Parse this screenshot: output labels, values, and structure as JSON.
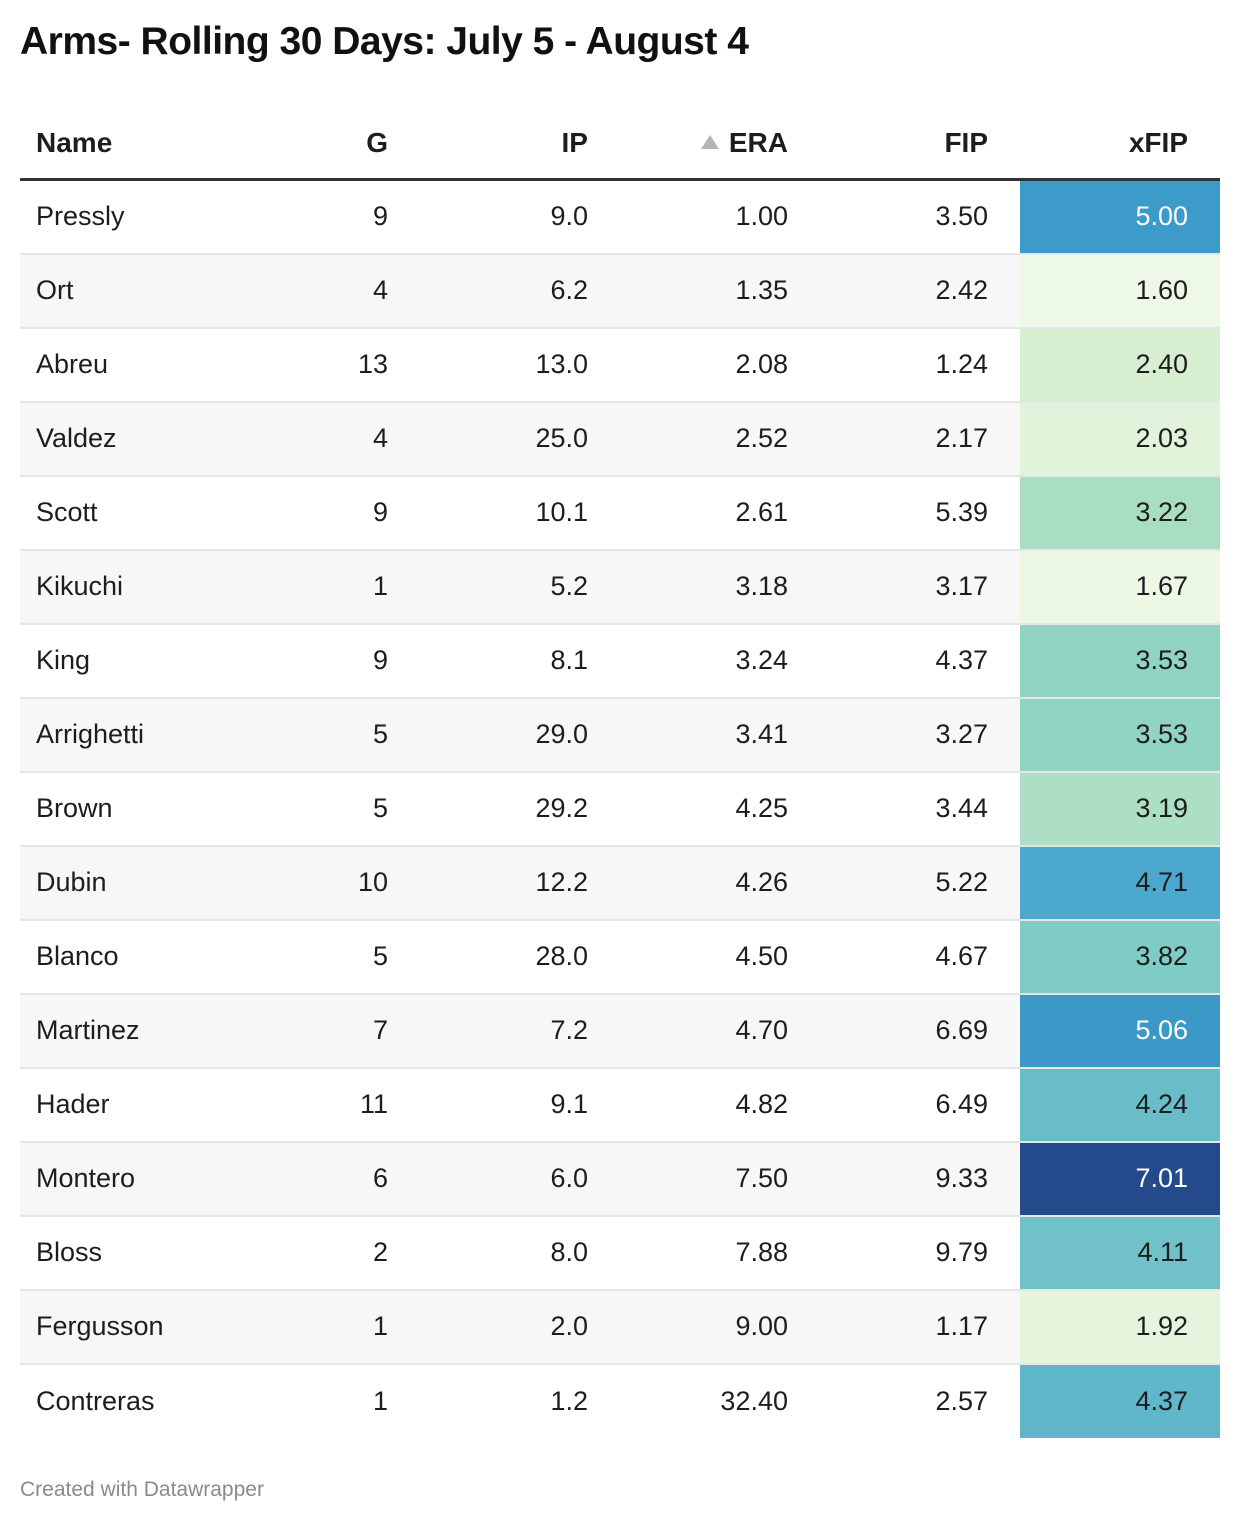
{
  "title": "Arms- Rolling 30 Days: July 5 - August 4",
  "footer": "Created with Datawrapper",
  "columns": [
    "Name",
    "G",
    "IP",
    "ERA",
    "FIP",
    "xFIP"
  ],
  "sort": {
    "column": "ERA",
    "direction": "ascending",
    "icon": "sort-ascending-icon"
  },
  "chart_data": {
    "type": "table",
    "title": "Arms- Rolling 30 Days: July 5 - August 4",
    "columns": [
      "Name",
      "G",
      "IP",
      "ERA",
      "FIP",
      "xFIP"
    ],
    "heatmap_column": "xFIP",
    "heatmap_scale": {
      "low_color": "#eef8e6",
      "mid_color": "#7cc8c5",
      "high_color": "#244a8c"
    },
    "rows": [
      {
        "name": "Pressly",
        "g": "9",
        "ip": "9.0",
        "era": "1.00",
        "fip": "3.50",
        "xfip": "5.00"
      },
      {
        "name": "Ort",
        "g": "4",
        "ip": "6.2",
        "era": "1.35",
        "fip": "2.42",
        "xfip": "1.60"
      },
      {
        "name": "Abreu",
        "g": "13",
        "ip": "13.0",
        "era": "2.08",
        "fip": "1.24",
        "xfip": "2.40"
      },
      {
        "name": "Valdez",
        "g": "4",
        "ip": "25.0",
        "era": "2.52",
        "fip": "2.17",
        "xfip": "2.03"
      },
      {
        "name": "Scott",
        "g": "9",
        "ip": "10.1",
        "era": "2.61",
        "fip": "5.39",
        "xfip": "3.22"
      },
      {
        "name": "Kikuchi",
        "g": "1",
        "ip": "5.2",
        "era": "3.18",
        "fip": "3.17",
        "xfip": "1.67"
      },
      {
        "name": "King",
        "g": "9",
        "ip": "8.1",
        "era": "3.24",
        "fip": "4.37",
        "xfip": "3.53"
      },
      {
        "name": "Arrighetti",
        "g": "5",
        "ip": "29.0",
        "era": "3.41",
        "fip": "3.27",
        "xfip": "3.53"
      },
      {
        "name": "Brown",
        "g": "5",
        "ip": "29.2",
        "era": "4.25",
        "fip": "3.44",
        "xfip": "3.19"
      },
      {
        "name": "Dubin",
        "g": "10",
        "ip": "12.2",
        "era": "4.26",
        "fip": "5.22",
        "xfip": "4.71"
      },
      {
        "name": "Blanco",
        "g": "5",
        "ip": "28.0",
        "era": "4.50",
        "fip": "4.67",
        "xfip": "3.82"
      },
      {
        "name": "Martinez",
        "g": "7",
        "ip": "7.2",
        "era": "4.70",
        "fip": "6.69",
        "xfip": "5.06"
      },
      {
        "name": "Hader",
        "g": "11",
        "ip": "9.1",
        "era": "4.82",
        "fip": "6.49",
        "xfip": "4.24"
      },
      {
        "name": "Montero",
        "g": "6",
        "ip": "6.0",
        "era": "7.50",
        "fip": "9.33",
        "xfip": "7.01"
      },
      {
        "name": "Bloss",
        "g": "2",
        "ip": "8.0",
        "era": "7.88",
        "fip": "9.79",
        "xfip": "4.11"
      },
      {
        "name": "Fergusson",
        "g": "1",
        "ip": "2.0",
        "era": "9.00",
        "fip": "1.17",
        "xfip": "1.92"
      },
      {
        "name": "Contreras",
        "g": "1",
        "ip": "1.2",
        "era": "32.40",
        "fip": "2.57",
        "xfip": "4.37"
      }
    ]
  }
}
